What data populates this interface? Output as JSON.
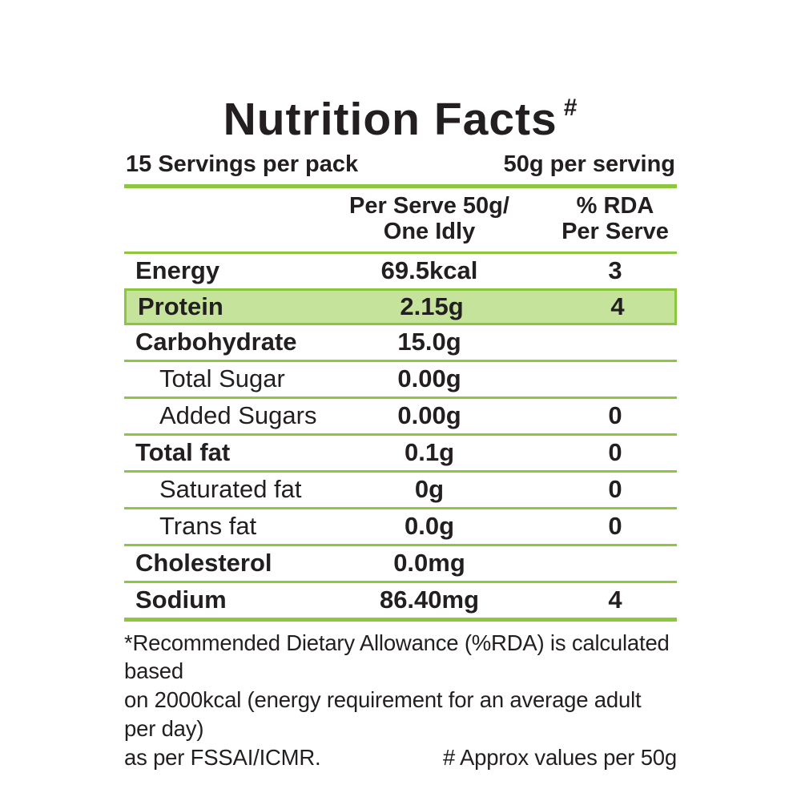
{
  "title": {
    "text": "Nutrition Facts",
    "superscript": "#"
  },
  "pack_info": {
    "servings_per_pack": "15 Servings per pack",
    "per_serving": "50g per serving"
  },
  "column_headers": {
    "amount_line1": "Per Serve 50g/",
    "amount_line2": "One Idly",
    "rda_line1": "% RDA",
    "rda_line2": "Per Serve"
  },
  "rows": [
    {
      "label": "Energy",
      "value": "69.5kcal",
      "rda": "3"
    },
    {
      "label": "Protein",
      "value": "2.15g",
      "rda": "4"
    },
    {
      "label": "Carbohydrate",
      "value": "15.0g",
      "rda": ""
    },
    {
      "label": "Total Sugar",
      "value": "0.00g",
      "rda": ""
    },
    {
      "label": "Added Sugars",
      "value": "0.00g",
      "rda": "0"
    },
    {
      "label": "Total fat",
      "value": "0.1g",
      "rda": "0"
    },
    {
      "label": "Saturated fat",
      "value": "0g",
      "rda": "0"
    },
    {
      "label": "Trans fat",
      "value": "0.0g",
      "rda": "0"
    },
    {
      "label": "Cholesterol",
      "value": "0.0mg",
      "rda": ""
    },
    {
      "label": "Sodium",
      "value": "86.40mg",
      "rda": "4"
    }
  ],
  "footnote": {
    "line1": "*Recommended Dietary Allowance (%RDA) is calculated based",
    "line2": "on 2000kcal (energy requirement for an average adult per day)",
    "line3_left": "as per FSSAI/ICMR.",
    "line3_right": "# Approx values per 50g"
  },
  "colors": {
    "line_green": "#8dc63f",
    "highlight_fill": "#c5e39b",
    "highlight_border": "#8cc63e",
    "text": "#231f20"
  }
}
